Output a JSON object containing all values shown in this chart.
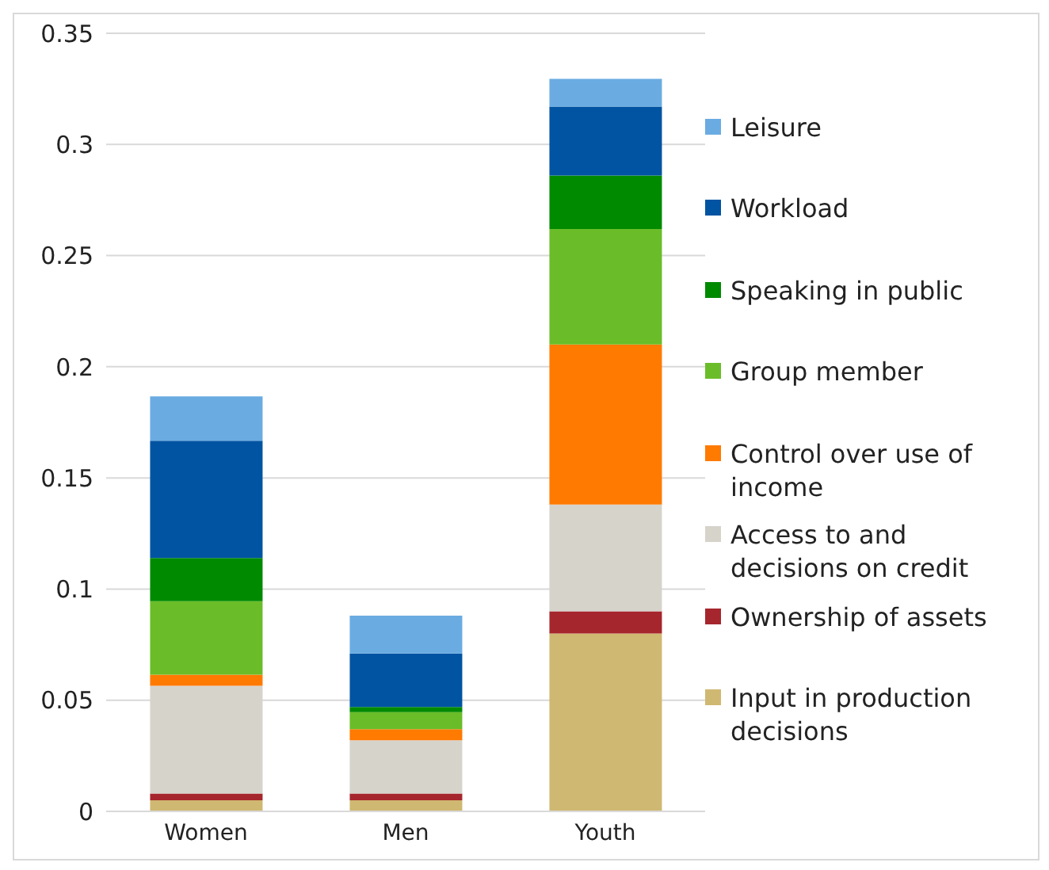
{
  "chart_data": {
    "type": "bar",
    "stacked": true,
    "categories": [
      "Women",
      "Men",
      "Youth"
    ],
    "series": [
      {
        "name": "Input in production decisions",
        "color": "#cfb871",
        "values": [
          0.005,
          0.005,
          0.08
        ]
      },
      {
        "name": "Ownership of assets",
        "color": "#a6262d",
        "values": [
          0.003,
          0.003,
          0.01
        ]
      },
      {
        "name": "Access to and decisions on credit",
        "color": "#d6d3cb",
        "values": [
          0.0485,
          0.024,
          0.048
        ]
      },
      {
        "name": "Control over use of income",
        "color": "#ff7a00",
        "values": [
          0.005,
          0.005,
          0.072
        ]
      },
      {
        "name": "Group member",
        "color": "#6abd28",
        "values": [
          0.033,
          0.0076,
          0.052
        ]
      },
      {
        "name": "Speaking in public",
        "color": "#008a00",
        "values": [
          0.0195,
          0.0024,
          0.024
        ]
      },
      {
        "name": "Workload",
        "color": "#0054a2",
        "values": [
          0.0527,
          0.024,
          0.031
        ]
      },
      {
        "name": "Leisure",
        "color": "#6aace2",
        "values": [
          0.02,
          0.017,
          0.0125
        ]
      }
    ],
    "ylim": [
      0,
      0.35
    ],
    "yticks": [
      0,
      0.05,
      0.1,
      0.15,
      0.2,
      0.25,
      0.3,
      0.35
    ],
    "grid": "y",
    "legend": "right"
  }
}
